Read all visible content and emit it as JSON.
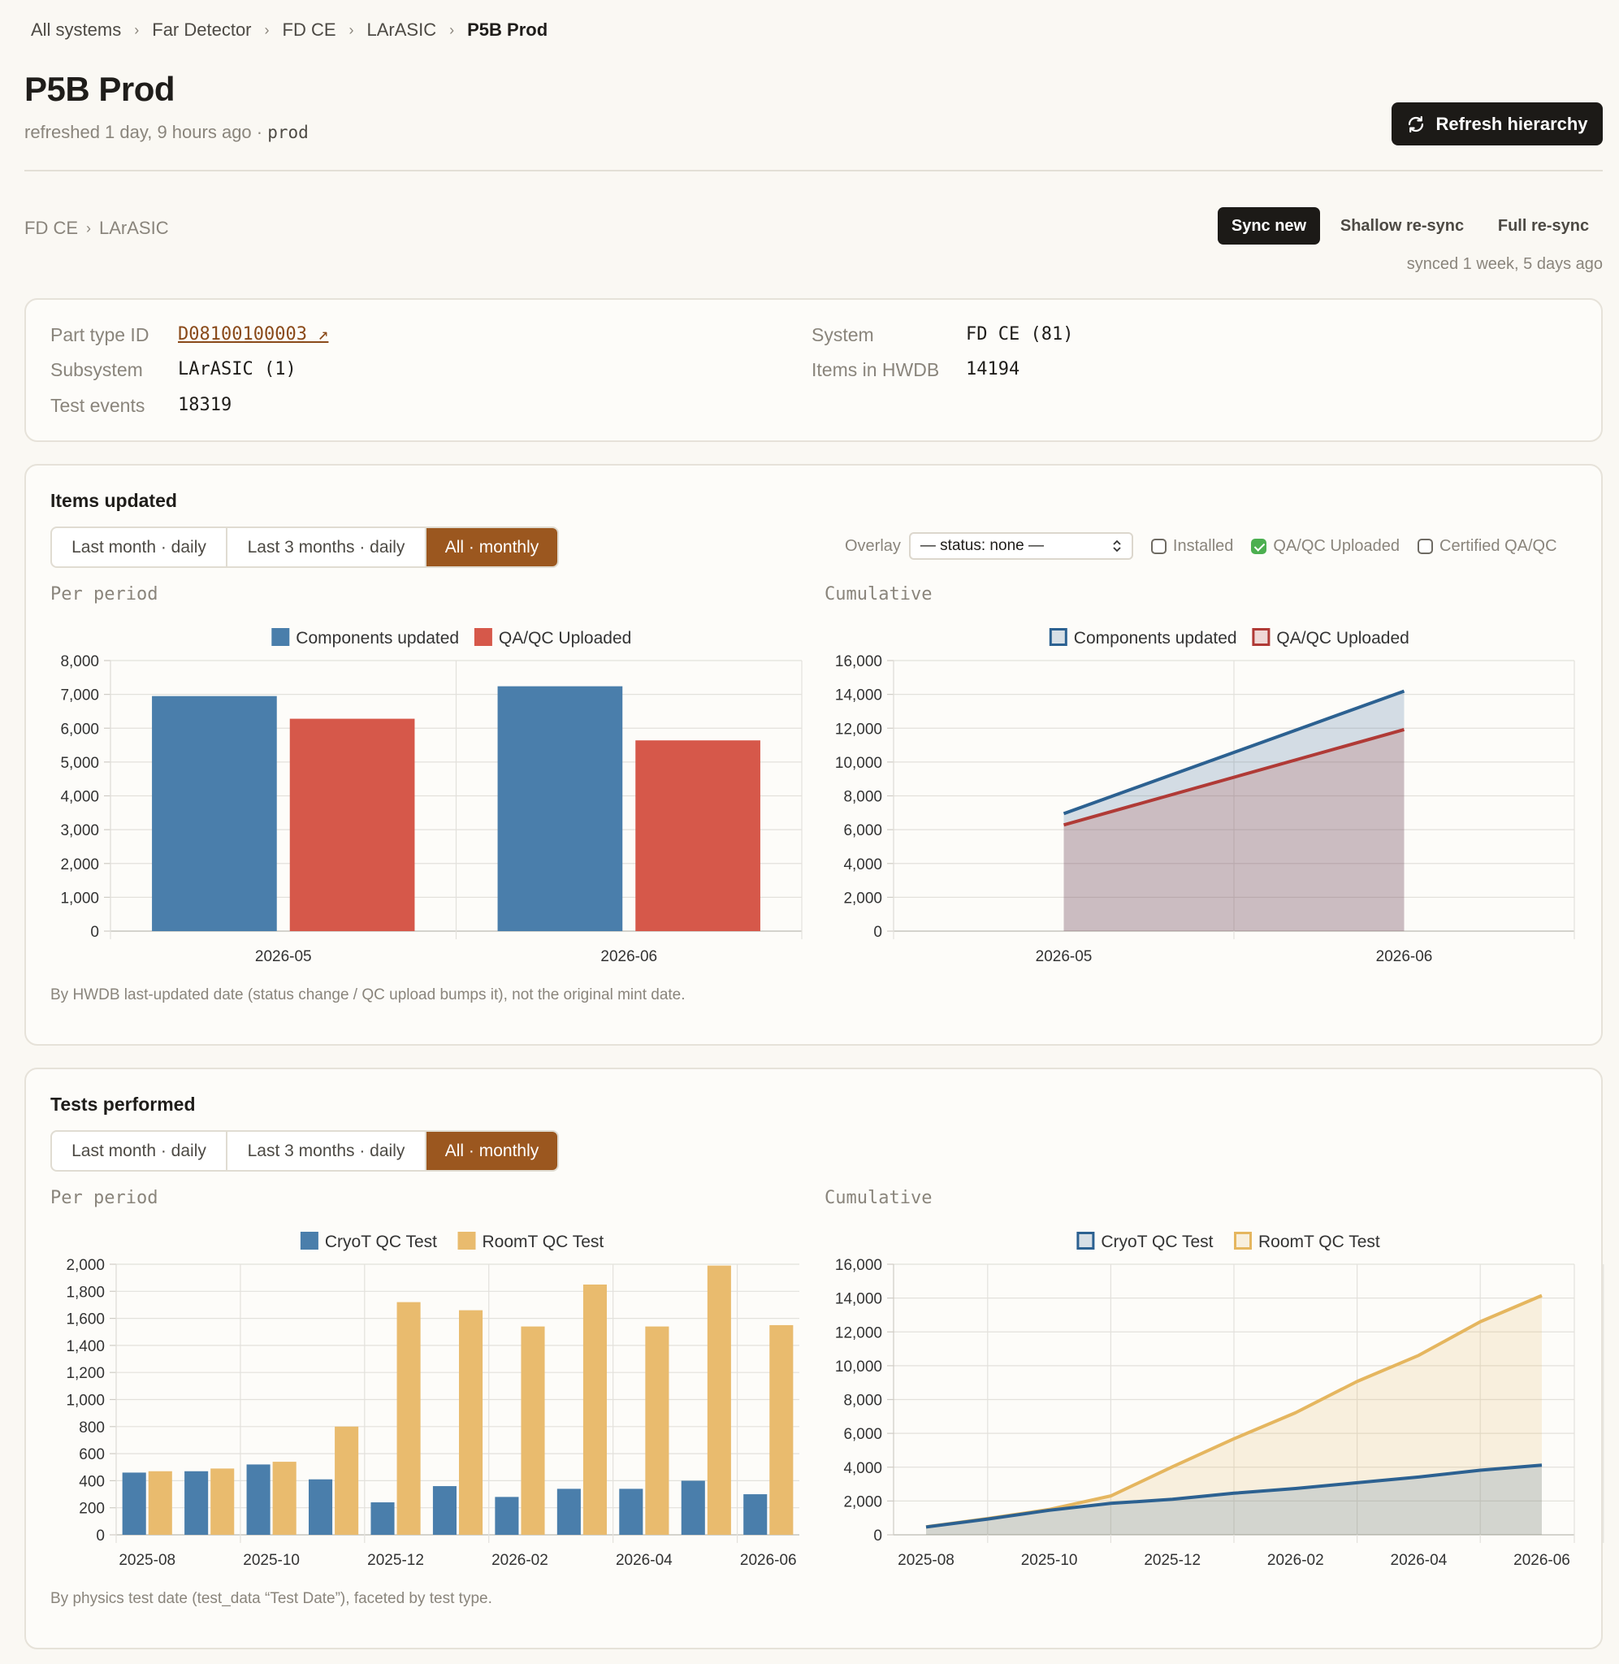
{
  "breadcrumb": [
    "All systems",
    "Far Detector",
    "FD CE",
    "LArASIC",
    "P5B Prod"
  ],
  "breadcrumb_sep": "›",
  "page": {
    "title": "P5B Prod",
    "refreshed": "refreshed 1 day, 9 hours ago · ",
    "env": "prod",
    "refresh_button": "Refresh hierarchy"
  },
  "sub_breadcrumb": [
    "FD CE",
    "LArASIC"
  ],
  "sync": {
    "buttons": [
      "Sync new",
      "Shallow re-sync",
      "Full re-sync"
    ],
    "active": "Sync new",
    "synced_time": "synced 1 week, 5 days ago"
  },
  "info": {
    "part_type_label": "Part type ID",
    "part_type_value": "D08100100003 ↗",
    "subsystem_label": "Subsystem",
    "subsystem_value": "LArASIC (1)",
    "test_events_label": "Test events",
    "test_events_value": "18319",
    "system_label": "System",
    "system_value": "FD CE (81)",
    "items_label": "Items in HWDB",
    "items_value": "14194"
  },
  "items_updated": {
    "title": "Items updated",
    "tabs": [
      "Last month · daily",
      "Last 3 months · daily",
      "All · monthly"
    ],
    "active_tab": "All · monthly",
    "overlay_label": "Overlay",
    "overlay_select": "— status: none —",
    "checks": [
      {
        "label": "Installed",
        "checked": false
      },
      {
        "label": "QA/QC Uploaded",
        "checked": true
      },
      {
        "label": "Certified QA/QC",
        "checked": false
      }
    ],
    "per_period_label": "Per period",
    "cumulative_label": "Cumulative",
    "note": "By HWDB last-updated date (status change / QC upload bumps it), not the original mint date."
  },
  "tests_performed": {
    "title": "Tests performed",
    "tabs": [
      "Last month · daily",
      "Last 3 months · daily",
      "All · monthly"
    ],
    "active_tab": "All · monthly",
    "per_period_label": "Per period",
    "cumulative_label": "Cumulative",
    "note": "By physics test date (test_data “Test Date”), faceted by test type."
  },
  "chart_data": [
    {
      "id": "items-per-period",
      "type": "bar",
      "categories": [
        "2026-05",
        "2026-06"
      ],
      "series": [
        {
          "name": "Components updated",
          "values": [
            6950,
            7240
          ],
          "color": "#4a7eab"
        },
        {
          "name": "QA/QC Uploaded",
          "values": [
            6280,
            5640
          ],
          "color": "#d6584a"
        }
      ],
      "ylim": [
        0,
        8000
      ],
      "yticks": [
        0,
        1000,
        2000,
        3000,
        4000,
        5000,
        6000,
        7000,
        8000
      ],
      "legend": "top-center",
      "grid": true
    },
    {
      "id": "items-cumulative",
      "type": "area",
      "categories": [
        "2026-05",
        "2026-06"
      ],
      "series": [
        {
          "name": "Components updated",
          "values": [
            6950,
            14190
          ],
          "color": "#2c6191"
        },
        {
          "name": "QA/QC Uploaded",
          "values": [
            6280,
            11920
          ],
          "color": "#b03a36"
        }
      ],
      "ylim": [
        0,
        16000
      ],
      "yticks": [
        0,
        2000,
        4000,
        6000,
        8000,
        10000,
        12000,
        14000,
        16000
      ],
      "legend": "top-center",
      "grid": true
    },
    {
      "id": "tests-per-period",
      "type": "bar",
      "categories": [
        "2025-08",
        "2025-09",
        "2025-10",
        "2025-11",
        "2025-12",
        "2026-01",
        "2026-02",
        "2026-03",
        "2026-04",
        "2026-05",
        "2026-06"
      ],
      "tick_labels": [
        "2025-08",
        "2025-10",
        "2025-12",
        "2026-02",
        "2026-04",
        "2026-06"
      ],
      "series": [
        {
          "name": "CryoT QC Test",
          "values": [
            460,
            470,
            520,
            410,
            240,
            360,
            280,
            340,
            340,
            400,
            300
          ],
          "color": "#4a7eab"
        },
        {
          "name": "RoomT QC Test",
          "values": [
            470,
            490,
            540,
            800,
            1720,
            1660,
            1540,
            1850,
            1540,
            1990,
            1550
          ],
          "color": "#e9bb6e"
        }
      ],
      "ylim": [
        0,
        2000
      ],
      "yticks": [
        0,
        200,
        400,
        600,
        800,
        1000,
        1200,
        1400,
        1600,
        1800,
        2000
      ],
      "legend": "top-center",
      "grid": true
    },
    {
      "id": "tests-cumulative",
      "type": "area",
      "categories": [
        "2025-08",
        "2025-09",
        "2025-10",
        "2025-11",
        "2025-12",
        "2026-01",
        "2026-02",
        "2026-03",
        "2026-04",
        "2026-05",
        "2026-06"
      ],
      "tick_labels": [
        "2025-08",
        "2025-10",
        "2025-12",
        "2026-02",
        "2026-04",
        "2026-06"
      ],
      "series": [
        {
          "name": "CryoT QC Test",
          "values": [
            460,
            930,
            1450,
            1860,
            2100,
            2460,
            2740,
            3080,
            3420,
            3820,
            4120
          ],
          "color": "#2c6191"
        },
        {
          "name": "RoomT QC Test",
          "values": [
            470,
            960,
            1500,
            2300,
            4020,
            5680,
            7220,
            9070,
            10610,
            12600,
            14150
          ],
          "color": "#e5b65f"
        }
      ],
      "ylim": [
        0,
        16000
      ],
      "yticks": [
        0,
        2000,
        4000,
        6000,
        8000,
        10000,
        12000,
        14000,
        16000
      ],
      "legend": "top-center",
      "grid": true
    }
  ]
}
